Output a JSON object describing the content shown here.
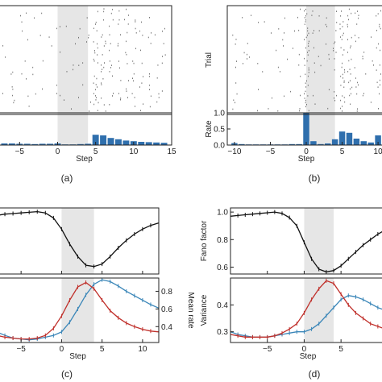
{
  "panel_labels": [
    "(a)",
    "(b)",
    "(c)",
    "(d)"
  ],
  "chart_data": [
    {
      "id": "a",
      "type": "raster+bar",
      "xlabel": "Step",
      "x_range": [
        -8,
        15
      ],
      "x_ticks": [
        -5,
        0,
        5,
        10,
        15
      ],
      "shade": [
        0,
        4
      ],
      "bars": {
        "x": [
          -7,
          -6,
          -5,
          -4,
          -3,
          -2,
          -1,
          0,
          1,
          2,
          3,
          4,
          5,
          6,
          7,
          8,
          9,
          10,
          11,
          12,
          13,
          14
        ],
        "values": [
          0.05,
          0.05,
          0.04,
          0.04,
          0.03,
          0.04,
          0.04,
          0.05,
          0.02,
          0.02,
          0.03,
          0.04,
          0.32,
          0.3,
          0.22,
          0.18,
          0.14,
          0.12,
          0.1,
          0.09,
          0.08,
          0.07
        ],
        "ylim": [
          0,
          1
        ]
      }
    },
    {
      "id": "b",
      "type": "raster+bar",
      "xlabel": "Step",
      "raster_ylabel": "Trial",
      "bar_ylabel": "Rate",
      "x_range": [
        -11,
        11
      ],
      "x_ticks": [
        -10,
        -5,
        0,
        5,
        10
      ],
      "y_ticks": [
        "0.0",
        "0.5",
        "1.0"
      ],
      "shade": [
        0,
        4
      ],
      "bars": {
        "x": [
          -10,
          -9,
          -8,
          -7,
          -6,
          -5,
          -4,
          -3,
          -2,
          -1,
          0,
          1,
          2,
          3,
          4,
          5,
          6,
          7,
          8,
          9,
          10
        ],
        "values": [
          0.06,
          0.03,
          0.02,
          0.02,
          0.02,
          0.02,
          0.02,
          0.02,
          0.03,
          0.03,
          1.0,
          0.12,
          0.03,
          0.05,
          0.18,
          0.42,
          0.38,
          0.2,
          0.12,
          0.08,
          0.3
        ],
        "ylim": [
          0,
          1
        ]
      }
    },
    {
      "id": "c",
      "type": "line",
      "xlabel": "Step",
      "x_range": [
        -8,
        12
      ],
      "x_ticks": [
        -5,
        0,
        5,
        10
      ],
      "shade": [
        0,
        4
      ],
      "top": {
        "series": [
          {
            "color": "#111111",
            "x": [
              -8,
              -7,
              -6,
              -5,
              -4,
              -3,
              -2,
              -1,
              0,
              1,
              2,
              3,
              4,
              5,
              6,
              7,
              8,
              9,
              10,
              11,
              12
            ],
            "y": [
              0.97,
              0.98,
              0.985,
              0.99,
              0.995,
              1.0,
              0.99,
              0.95,
              0.86,
              0.74,
              0.64,
              0.57,
              0.56,
              0.58,
              0.64,
              0.71,
              0.77,
              0.82,
              0.86,
              0.89,
              0.91
            ]
          }
        ],
        "ylim": [
          0.5,
          1.03
        ]
      },
      "bottom": {
        "right_ylabel": "Mean rate",
        "right_ylabel_color": "#c0302b",
        "right_y_ticks": [
          "0.4",
          "0.6",
          "0.8"
        ],
        "series": [
          {
            "color": "#3a86b8",
            "x": [
              -8,
              -7,
              -6,
              -5,
              -4,
              -3,
              -2,
              -1,
              0,
              1,
              2,
              3,
              4,
              5,
              6,
              7,
              8,
              9,
              10,
              11,
              12
            ],
            "y": [
              0.34,
              0.3,
              0.27,
              0.26,
              0.25,
              0.26,
              0.28,
              0.3,
              0.34,
              0.45,
              0.6,
              0.76,
              0.88,
              0.93,
              0.91,
              0.86,
              0.8,
              0.75,
              0.7,
              0.65,
              0.61
            ]
          },
          {
            "color": "#c0302b",
            "x": [
              -8,
              -7,
              -6,
              -5,
              -4,
              -3,
              -2,
              -1,
              0,
              1,
              2,
              3,
              4,
              5,
              6,
              7,
              8,
              9,
              10,
              11,
              12
            ],
            "y": [
              0.3,
              0.28,
              0.27,
              0.26,
              0.26,
              0.27,
              0.3,
              0.38,
              0.52,
              0.7,
              0.85,
              0.9,
              0.83,
              0.7,
              0.58,
              0.5,
              0.44,
              0.4,
              0.37,
              0.35,
              0.34
            ]
          }
        ],
        "ylim": [
          0.22,
          0.95
        ]
      }
    },
    {
      "id": "d",
      "type": "line",
      "xlabel": "Step",
      "x_range": [
        -10,
        11
      ],
      "x_ticks": [
        -5,
        0,
        5
      ],
      "shade": [
        0,
        4
      ],
      "top": {
        "left_ylabel": "Fano factor",
        "left_y_ticks": [
          "0.6",
          "0.8",
          "1.0"
        ],
        "series": [
          {
            "color": "#111111",
            "x": [
              -10,
              -9,
              -8,
              -7,
              -6,
              -5,
              -4,
              -3,
              -2,
              -1,
              0,
              1,
              2,
              3,
              4,
              5,
              6,
              7,
              8,
              9,
              10,
              11
            ],
            "y": [
              0.97,
              0.975,
              0.98,
              0.985,
              0.99,
              0.995,
              1.0,
              0.99,
              0.96,
              0.9,
              0.78,
              0.66,
              0.585,
              0.565,
              0.575,
              0.61,
              0.66,
              0.71,
              0.76,
              0.8,
              0.84,
              0.87
            ]
          }
        ],
        "ylim": [
          0.55,
          1.03
        ]
      },
      "bottom": {
        "left_ylabel": "Variance",
        "left_ylabel_color": "#3a86b8",
        "left_y_ticks": [
          "0.3",
          "0.4"
        ],
        "series": [
          {
            "color": "#3a86b8",
            "x": [
              -10,
              -9,
              -8,
              -7,
              -6,
              -5,
              -4,
              -3,
              -2,
              -1,
              0,
              1,
              2,
              3,
              4,
              5,
              6,
              7,
              8,
              9,
              10,
              11
            ],
            "y": [
              0.3,
              0.29,
              0.285,
              0.28,
              0.28,
              0.28,
              0.285,
              0.29,
              0.295,
              0.3,
              0.3,
              0.31,
              0.33,
              0.36,
              0.39,
              0.42,
              0.435,
              0.43,
              0.42,
              0.405,
              0.39,
              0.38
            ]
          },
          {
            "color": "#c0302b",
            "x": [
              -10,
              -9,
              -8,
              -7,
              -6,
              -5,
              -4,
              -3,
              -2,
              -1,
              0,
              1,
              2,
              3,
              4,
              5,
              6,
              7,
              8,
              9,
              10,
              11
            ],
            "y": [
              0.29,
              0.285,
              0.28,
              0.28,
              0.28,
              0.28,
              0.285,
              0.295,
              0.31,
              0.33,
              0.37,
              0.42,
              0.46,
              0.49,
              0.48,
              0.44,
              0.4,
              0.37,
              0.35,
              0.33,
              0.32,
              0.31
            ]
          }
        ],
        "ylim": [
          0.26,
          0.5
        ]
      }
    }
  ]
}
